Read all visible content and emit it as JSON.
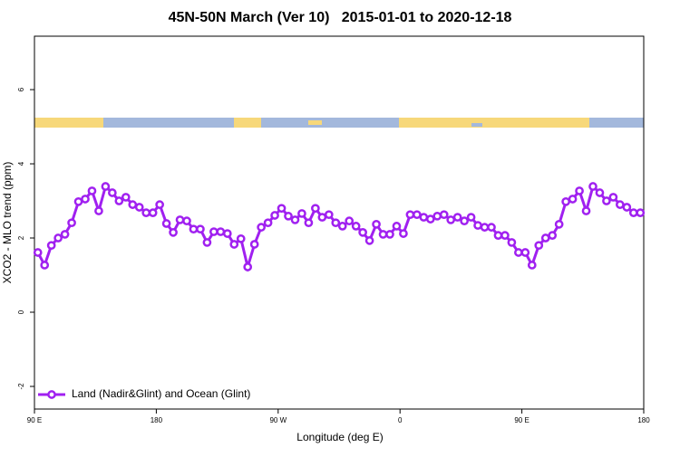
{
  "chart_data": {
    "type": "line",
    "title": "45N-50N March (Ver 10)   2015-01-01 to 2020-12-18",
    "x_label": "Longitude (deg E)",
    "y_label": "XCO2 - MLO trend (ppm)",
    "x": [
      92.5,
      97.5,
      102.5,
      107.5,
      112.5,
      117.5,
      122.5,
      127.5,
      132.5,
      137.5,
      142.5,
      147.5,
      152.5,
      157.5,
      162.5,
      167.5,
      172.5,
      177.5,
      182.5,
      187.5,
      192.5,
      197.5,
      202.5,
      207.5,
      212.5,
      217.5,
      222.5,
      227.5,
      232.5,
      237.5,
      242.5,
      247.5,
      252.5,
      257.5,
      262.5,
      267.5,
      272.5,
      277.5,
      282.5,
      287.5,
      292.5,
      297.5,
      302.5,
      307.5,
      312.5,
      317.5,
      322.5,
      327.5,
      332.5,
      337.5,
      342.5,
      347.5,
      352.5,
      357.5,
      362.5,
      367.5,
      372.5,
      377.5,
      382.5,
      387.5,
      392.5,
      397.5,
      402.5,
      407.5,
      412.5,
      417.5,
      422.5,
      427.5,
      432.5,
      437.5,
      442.5,
      447.5,
      452.5,
      457.5,
      462.5,
      467.5,
      472.5,
      477.5,
      482.5,
      487.5,
      492.5,
      497.5,
      502.5,
      507.5,
      512.5,
      517.5,
      522.5,
      527.5,
      532.5,
      537.5
    ],
    "series": [
      {
        "name": "Land (Nadir&Glint) and Ocean (Glint)",
        "color": "#a020f0",
        "values": [
          1.61,
          1.27,
          1.8,
          2.0,
          2.1,
          2.41,
          2.98,
          3.05,
          3.27,
          2.73,
          3.39,
          3.22,
          3.0,
          3.1,
          2.9,
          2.83,
          2.68,
          2.68,
          2.9,
          2.39,
          2.15,
          2.49,
          2.46,
          2.24,
          2.24,
          1.88,
          2.17,
          2.17,
          2.12,
          1.83,
          1.98,
          1.22,
          1.83,
          2.29,
          2.41,
          2.61,
          2.8,
          2.59,
          2.49,
          2.66,
          2.41,
          2.8,
          2.56,
          2.63,
          2.41,
          2.32,
          2.46,
          2.32,
          2.15,
          1.93,
          2.37,
          2.1,
          2.1,
          2.32,
          2.12,
          2.63,
          2.63,
          2.56,
          2.51,
          2.59,
          2.63,
          2.49,
          2.56,
          2.46,
          2.56,
          2.34,
          2.29,
          2.29,
          2.07,
          2.07,
          1.88,
          1.61,
          1.61,
          1.27,
          1.8,
          2.0,
          2.07,
          2.37,
          2.98,
          3.05,
          3.27,
          2.73,
          3.39,
          3.22,
          3.0,
          3.1,
          2.9,
          2.83,
          2.68,
          2.68
        ]
      }
    ],
    "xlim": [
      90,
      540
    ],
    "xticks": [
      {
        "value": 90,
        "label": "90 E"
      },
      180,
      {
        "value": 270,
        "label": "90 W"
      },
      {
        "value": 360,
        "label": "0"
      },
      {
        "value": 450,
        "label": "90 E"
      },
      {
        "value": 540,
        "label": "180"
      }
    ],
    "ylim": [
      -2.61,
      7.44
    ],
    "yticks": [
      -2,
      0,
      2,
      4,
      6
    ],
    "legend": "bottom-left"
  }
}
